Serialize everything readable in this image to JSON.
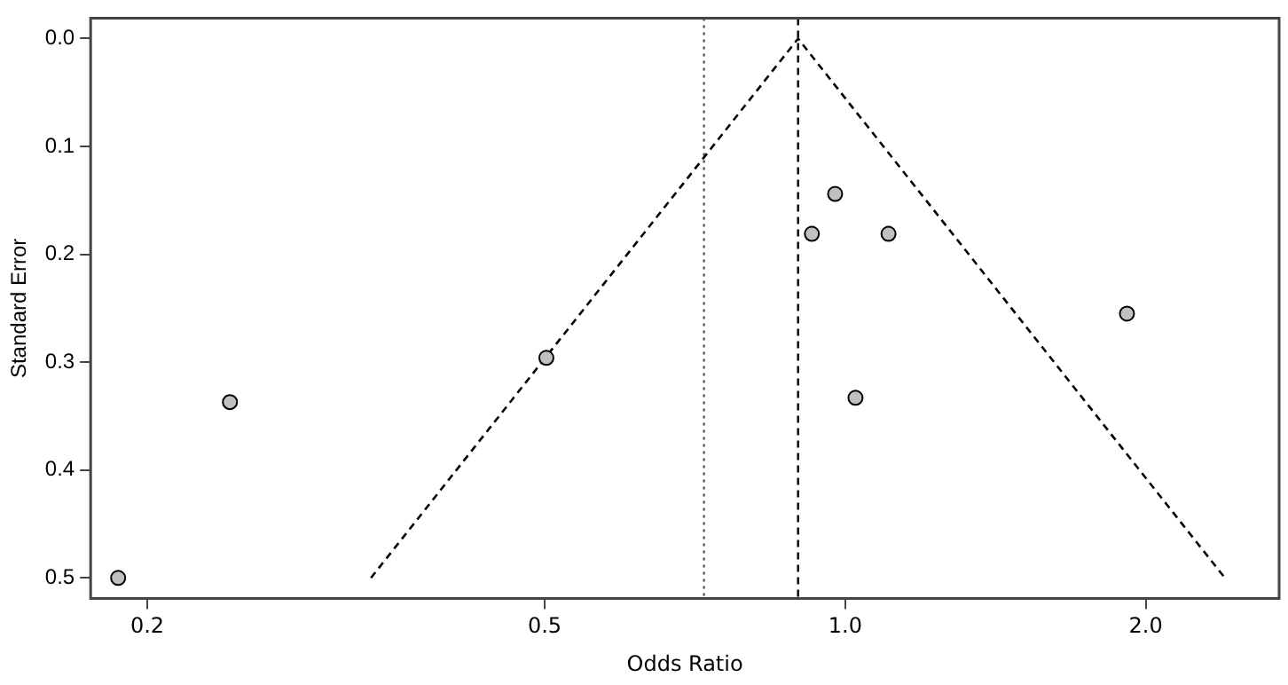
{
  "chart_data": {
    "type": "scatter",
    "xlabel": "Odds Ratio",
    "ylabel": "Standard Error",
    "log": "x",
    "grid": false,
    "legend": false,
    "marker": "circle",
    "xlim": [
      0.1755,
      2.72
    ],
    "ylim": [
      0.519,
      -0.019
    ],
    "xticks": [
      0.2,
      0.5,
      {
        "value": 1,
        "label": "1.0"
      },
      {
        "value": 2,
        "label": "2.0"
      }
    ],
    "yticks": [
      {
        "value": 0,
        "label": "0.0"
      },
      0.1,
      0.2,
      0.3,
      0.4,
      0.5
    ],
    "series": [
      {
        "color": "#c0c0c0",
        "x": [
          0.187,
          0.242,
          0.502,
          0.977,
          0.926,
          1.105,
          1.915,
          1.024
        ],
        "values": [
          0.5,
          0.337,
          0.296,
          0.144,
          0.181,
          0.181,
          0.255,
          0.333
        ]
      },
      {
        "type": "line",
        "color": "#000000",
        "line_style": "dashed",
        "marker": "none",
        "x": [
          0.335,
          0.897,
          2.4
        ],
        "values": [
          0.5,
          0,
          0.5
        ]
      }
    ],
    "ref_lines": [
      {
        "axis": "x",
        "value": 0.897,
        "color": "#000000",
        "line_style": "dashed"
      },
      {
        "axis": "x",
        "value": 0.722,
        "color": "#555555",
        "line_style": "dotted"
      }
    ]
  }
}
